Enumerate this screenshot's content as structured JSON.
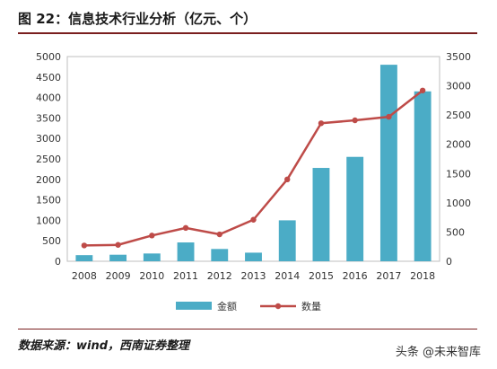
{
  "header": {
    "title": "图 22：信息技术行业分析（亿元、个）"
  },
  "footer": {
    "source": "数据来源：wind，西南证券整理",
    "watermark": "头条 @未来智库"
  },
  "colors": {
    "bar": "#4bacc6",
    "line": "#be4b48",
    "axis": "#bfbfbf",
    "title_rule": "#7a1f1f"
  },
  "chart_data": {
    "type": "bar",
    "categories": [
      "2008",
      "2009",
      "2010",
      "2011",
      "2012",
      "2013",
      "2014",
      "2015",
      "2016",
      "2017",
      "2018"
    ],
    "series": [
      {
        "name": "金额",
        "type": "bar",
        "axis": "left",
        "values": [
          150,
          160,
          190,
          460,
          300,
          210,
          1000,
          2280,
          2550,
          4800,
          4150
        ]
      },
      {
        "name": "数量",
        "type": "line",
        "axis": "right",
        "values": [
          270,
          280,
          440,
          570,
          460,
          710,
          1400,
          2360,
          2410,
          2470,
          2920
        ]
      }
    ],
    "y_left": {
      "min": 0,
      "max": 5000,
      "ticks": [
        "0",
        "500",
        "1000",
        "1500",
        "2000",
        "2500",
        "3000",
        "3500",
        "4000",
        "4500",
        "5000"
      ]
    },
    "y_right": {
      "min": 0,
      "max": 3500,
      "ticks": [
        "0",
        "500",
        "1000",
        "1500",
        "2000",
        "2500",
        "3000",
        "3500"
      ]
    },
    "legend": {
      "position": "bottom",
      "items": [
        "金额",
        "数量"
      ]
    },
    "grid": false
  }
}
